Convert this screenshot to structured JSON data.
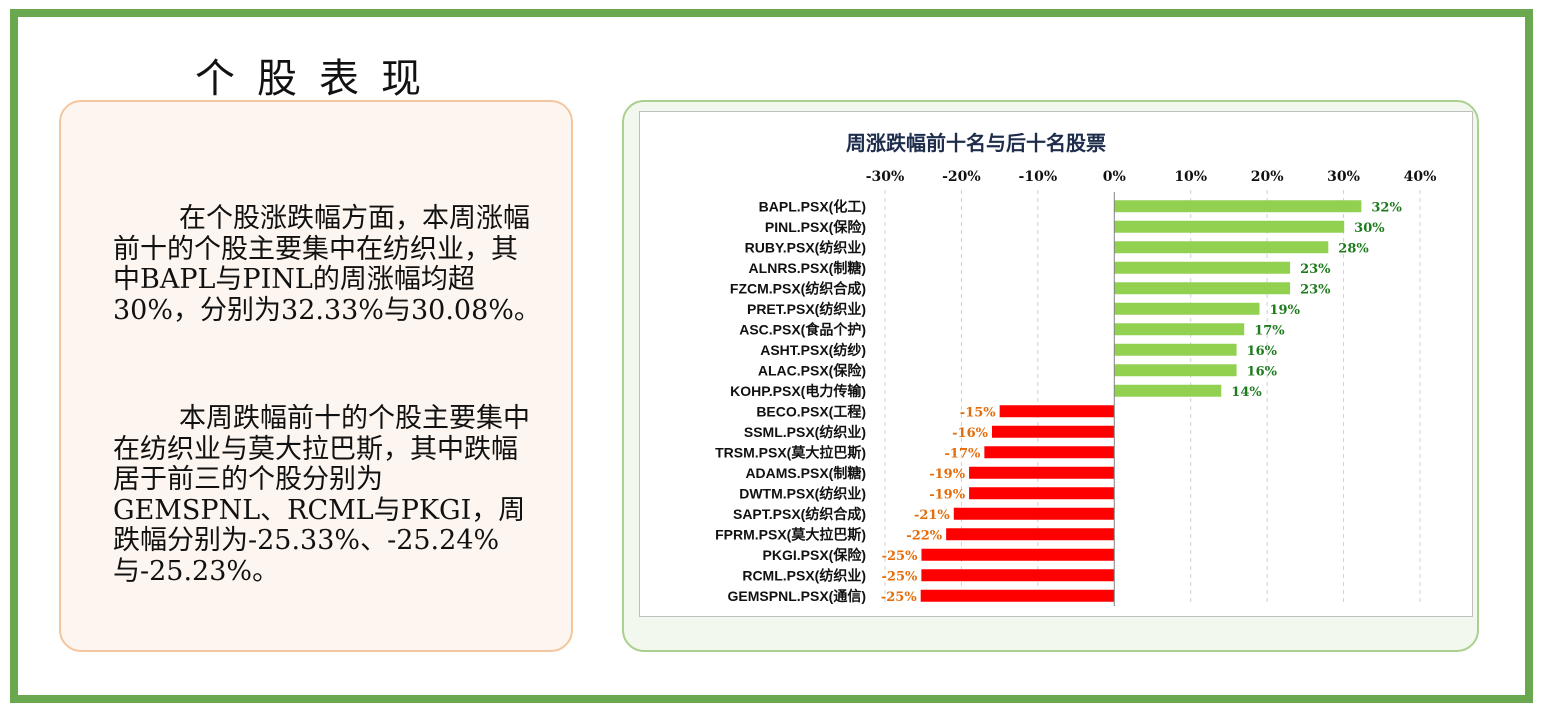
{
  "page_title": "个股表现",
  "text_panel": {
    "paragraph_1": "在个股涨跌幅方面，本周涨幅前十的个股主要集中在纺织业，其中BAPL与PINL的周涨幅均超30%，分别为32.33%与30.08%。",
    "paragraph_2": "本周跌幅前十的个股主要集中在纺织业与莫大拉巴斯，其中跌幅居于前三的个股分别为GEMSPNL、RCML与PKGI，周跌幅分别为-25.33%、-25.24%与-25.23%。"
  },
  "colors": {
    "positive_bar": "#92d050",
    "negative_bar": "#ff0000",
    "positive_label": "#1e7b1e",
    "negative_label": "#e46c0a",
    "frame": "#6aa84f"
  },
  "chart_data": {
    "type": "bar",
    "orientation": "horizontal",
    "title": "周涨跌幅前十名与后十名股票",
    "xlim": [
      -30,
      40
    ],
    "x_ticks": [
      -30,
      -20,
      -10,
      0,
      10,
      20,
      30,
      40
    ],
    "x_tick_labels": [
      "-30%",
      "-20%",
      "-10%",
      "0%",
      "10%",
      "20%",
      "30%",
      "40%"
    ],
    "grid": "vertical dashed",
    "categories": [
      "BAPL.PSX(化工)",
      "PINL.PSX(保险)",
      "RUBY.PSX(纺织业)",
      "ALNRS.PSX(制糖)",
      "FZCM.PSX(纺织合成)",
      "PRET.PSX(纺织业)",
      "ASC.PSX(食品个护)",
      "ASHT.PSX(纺纱)",
      "ALAC.PSX(保险)",
      "KOHP.PSX(电力传输)",
      "BECO.PSX(工程)",
      "SSML.PSX(纺织业)",
      "TRSM.PSX(莫大拉巴斯)",
      "ADAMS.PSX(制糖)",
      "DWTM.PSX(纺织业)",
      "SAPT.PSX(纺织合成)",
      "FPRM.PSX(莫大拉巴斯)",
      "PKGI.PSX(保险)",
      "RCML.PSX(纺织业)",
      "GEMSPNL.PSX(通信)"
    ],
    "values": [
      32.33,
      30.08,
      28,
      23,
      23,
      19,
      17,
      16,
      16,
      14,
      -15,
      -16,
      -17,
      -19,
      -19,
      -21,
      -22,
      -25.23,
      -25.24,
      -25.33
    ],
    "data_labels": [
      "32%",
      "30%",
      "28%",
      "23%",
      "23%",
      "19%",
      "17%",
      "16%",
      "16%",
      "14%",
      "-15%",
      "-16%",
      "-17%",
      "-19%",
      "-19%",
      "-21%",
      "-22%",
      "-25%",
      "-25%",
      "-25%"
    ]
  }
}
